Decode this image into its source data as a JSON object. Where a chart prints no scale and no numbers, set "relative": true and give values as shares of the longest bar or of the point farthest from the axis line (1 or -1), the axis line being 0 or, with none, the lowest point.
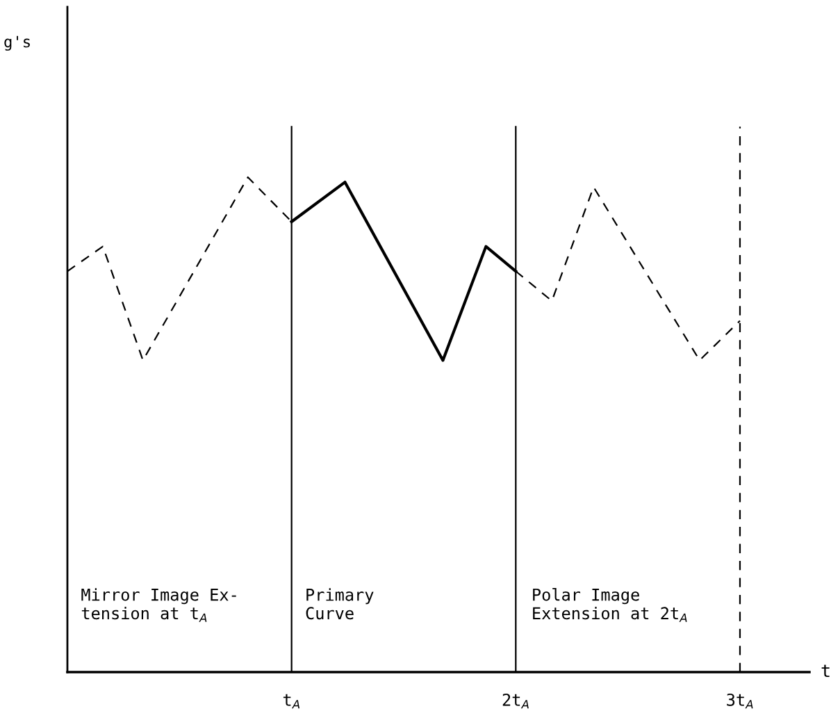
{
  "chart_data": {
    "type": "line",
    "relative": true,
    "xlabel": "t",
    "xlim": [
      0,
      3.31
    ],
    "xticks": [
      {
        "value": 1,
        "label": "t$_{A}$"
      },
      {
        "value": 2,
        "label": "2t$_{A}$"
      },
      {
        "value": 3,
        "label": "3t$_{A}$"
      }
    ],
    "series": [
      {
        "color": "#000000",
        "line_style": "dashed",
        "x": [
          0,
          0.158,
          0.337,
          0.805,
          1.0
        ],
        "values": [
          0.81,
          0.86,
          0.63,
          1.0,
          0.91
        ]
      },
      {
        "color": "#000000",
        "line_style": "solid",
        "x": [
          1.0,
          1.238,
          1.675,
          1.867,
          2.0
        ],
        "values": [
          0.91,
          0.99,
          0.63,
          0.86,
          0.81
        ]
      },
      {
        "color": "#000000",
        "line_style": "dashed",
        "x": [
          2.0,
          2.161,
          2.347,
          2.82,
          3.0
        ],
        "values": [
          0.81,
          0.75,
          0.98,
          0.63,
          0.71
        ]
      }
    ],
    "ref_lines": [
      {
        "axis": "x",
        "value": 1,
        "color": "#000000",
        "line_style": "solid"
      },
      {
        "axis": "x",
        "value": 2,
        "color": "#000000",
        "line_style": "solid"
      },
      {
        "axis": "x",
        "value": 3,
        "color": "#000000",
        "line_style": "dashed"
      }
    ],
    "annotations": [
      "g's",
      "Mirror Image Ex-\ntension at t$_{A}$",
      "Primary\nCurve",
      "Polar Image\nExtension at 2t$_{A}$"
    ]
  }
}
